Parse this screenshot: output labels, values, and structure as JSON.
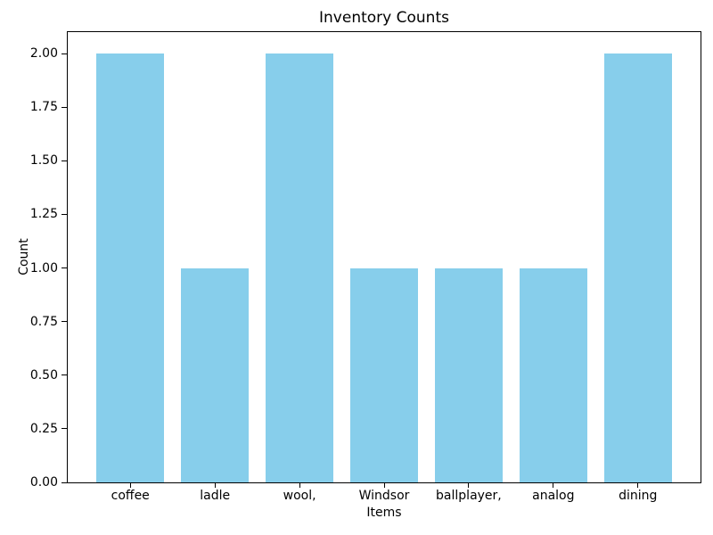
{
  "chart_data": {
    "type": "bar",
    "title": "Inventory Counts",
    "xlabel": "Items",
    "ylabel": "Count",
    "categories": [
      "coffee",
      "ladle",
      "wool,",
      "Windsor",
      "ballplayer,",
      "analog",
      "dining"
    ],
    "values": [
      2,
      1,
      2,
      1,
      1,
      1,
      2
    ],
    "ylim": [
      0,
      2.1
    ],
    "yticks": [
      0,
      0.25,
      0.5,
      0.75,
      1.0,
      1.25,
      1.5,
      1.75,
      2.0
    ],
    "ytick_labels": [
      "0.00",
      "0.25",
      "0.50",
      "0.75",
      "1.00",
      "1.25",
      "1.50",
      "1.75",
      "2.00"
    ],
    "bar_color": "#87CEEB",
    "bar_width_fraction": 0.8,
    "grid": false,
    "legend": "none",
    "background_color": "#ffffff",
    "axis_color": "#000000"
  }
}
